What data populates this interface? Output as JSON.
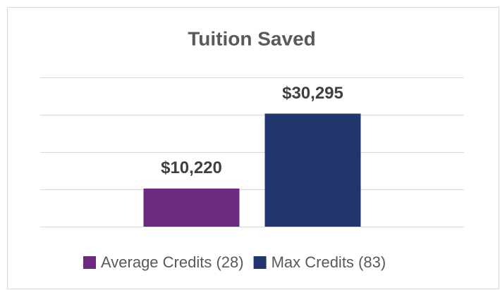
{
  "chart_data": {
    "type": "bar",
    "title": "Tuition Saved",
    "categories": [
      null
    ],
    "series": [
      {
        "name": "Average Credits (28)",
        "color": "#6b2a7d",
        "values": [
          10220
        ],
        "value_labels": [
          "$10,220"
        ]
      },
      {
        "name": "Max Credits (83)",
        "color": "#22366e",
        "values": [
          30295
        ],
        "value_labels": [
          "$30,295"
        ]
      }
    ],
    "ylim": [
      0,
      40000
    ],
    "yticks": [
      0,
      10000,
      20000,
      30000,
      40000
    ],
    "grid": true,
    "legend": "bottom"
  }
}
